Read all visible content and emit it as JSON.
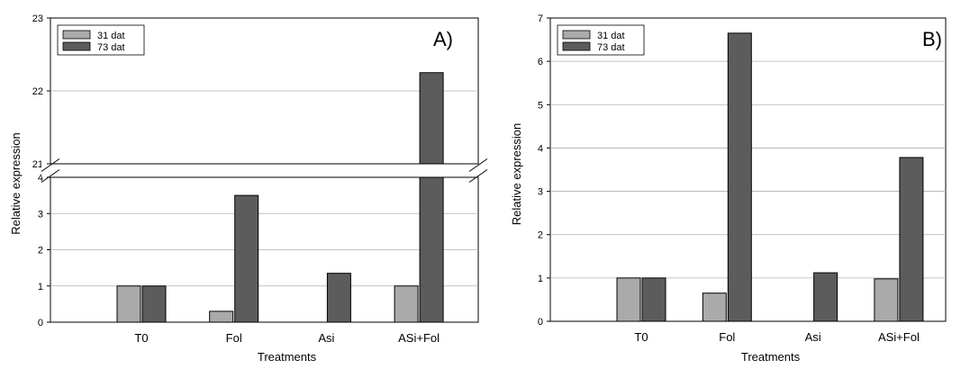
{
  "colors": {
    "series_31": "#aaaaaa",
    "series_73": "#5c5c5c",
    "grid": "#b0b0b0"
  },
  "chart_data": [
    {
      "type": "bar",
      "panel_label": "A)",
      "xlabel": "Treatments",
      "ylabel": "Relative expression",
      "categories": [
        "T0",
        "Fol",
        "Asi",
        "ASi+Fol"
      ],
      "series": [
        {
          "name": "31 dat",
          "values": [
            1.0,
            0.3,
            0.0,
            1.0
          ]
        },
        {
          "name": "73 dat",
          "values": [
            1.0,
            3.5,
            1.35,
            22.25
          ]
        }
      ],
      "y_break": {
        "lower": [
          0,
          4
        ],
        "upper": [
          21,
          23
        ]
      },
      "yticks_lower": [
        "0",
        "1",
        "2",
        "3",
        "4"
      ],
      "yticks_upper": [
        "21",
        "22",
        "23"
      ],
      "grid": true,
      "legend_position": "top-left"
    },
    {
      "type": "bar",
      "panel_label": "B)",
      "xlabel": "Treatments",
      "ylabel": "Relative expression",
      "categories": [
        "T0",
        "Fol",
        "Asi",
        "ASi+Fol"
      ],
      "series": [
        {
          "name": "31 dat",
          "values": [
            1.0,
            0.65,
            0.0,
            0.98
          ]
        },
        {
          "name": "73 dat",
          "values": [
            1.0,
            6.65,
            1.12,
            3.78
          ]
        }
      ],
      "ylim": [
        0,
        7
      ],
      "yticks": [
        "0",
        "1",
        "2",
        "3",
        "4",
        "5",
        "6",
        "7"
      ],
      "grid": true,
      "legend_position": "top-left"
    }
  ]
}
